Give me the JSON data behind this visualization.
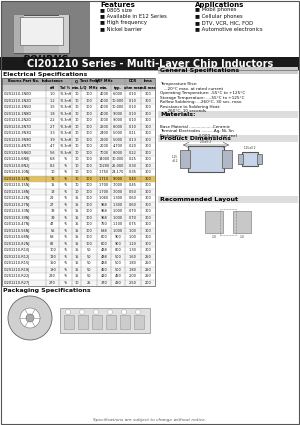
{
  "title": "CI201210 Series - Multi-Layer Chip Inductors",
  "logo": "BOURNS",
  "features_title": "Features",
  "features": [
    "0805 size",
    "Available in E12 Series",
    "High frequency",
    "Nickel barrier"
  ],
  "applications_title": "Applications",
  "applications": [
    "Mobil phones",
    "Cellular phones",
    "DTV, VCR, HIC, FOD",
    "Automotive electronics"
  ],
  "elec_spec_title": "Electrical Specifications",
  "gen_spec_title": "General Specifications",
  "col_headers_row1": [
    "Bourns Part No.",
    "Inductance",
    "Q",
    "Test Freq",
    "SRF MHz",
    "",
    "DCR",
    "Irms"
  ],
  "col_headers_row2": [
    "",
    "nH",
    "Tol %",
    "min.",
    "L/Q  MHz",
    "min.",
    "typ.",
    "ohm max",
    "mA max"
  ],
  "table_rows": [
    [
      "CI201210-1N0D",
      "1.0",
      "°0.3nH",
      "10",
      "100",
      "4000",
      "6,000",
      "0.10",
      "300"
    ],
    [
      "CI201210-1N2D",
      "1.2",
      "°0.3nH",
      "10",
      "100",
      "4000",
      "10,000",
      "0.10",
      "300"
    ],
    [
      "CI201210-1N5D",
      "1.5",
      "°0.3nH",
      "10",
      "100",
      "4000",
      "10,000",
      "0.10",
      "300"
    ],
    [
      "CI201210-1N8D",
      "1.8",
      "°0.3nH",
      "10",
      "100",
      "4000",
      "9,000",
      "0.10",
      "300"
    ],
    [
      "CI201210-2N2D",
      "2.2",
      "°0.3nH",
      "10",
      "100",
      "3000",
      "9,000",
      "0.10",
      "300"
    ],
    [
      "CI201210-2N7D",
      "2.7",
      "°0.3nH",
      "10",
      "100",
      "2600",
      "8,000",
      "0.10",
      "300"
    ],
    [
      "CI201210-3N3D",
      "3.3",
      "°0.3nH",
      "10",
      "100",
      "2400",
      "5,000",
      "0.11",
      "300"
    ],
    [
      "CI201210-3N9D",
      "3.9",
      "°0.3nH",
      "10",
      "100",
      "2200",
      "5,000",
      "0.13",
      "300"
    ],
    [
      "CI201210-4N7D",
      "4.7",
      "°0.3nH",
      "10",
      "100",
      "2000",
      "4,700",
      "0.20",
      "300"
    ],
    [
      "CI201210-5N6D",
      "5.6",
      "°0.3nH",
      "10",
      "100",
      "7000",
      "8,000",
      "0.22",
      "300"
    ],
    [
      "CI201210-6N8J",
      "6.8",
      "°5",
      "10",
      "100",
      "14000",
      "30,000",
      "0.25",
      "300"
    ],
    [
      "CI201210-8N2J",
      "8.2",
      "°5",
      "10",
      "100",
      "10200",
      "25,000",
      "0.30",
      "300"
    ],
    [
      "CI201210-10NJ",
      "10",
      "°5",
      "10",
      "100",
      "1,750",
      "24,170",
      "0.35",
      "300"
    ],
    [
      "CI201210-12NJ",
      "12",
      "°5",
      "10",
      "100",
      "1,710",
      "9,000",
      "0.40",
      "300"
    ],
    [
      "CI201210-15NJ",
      "15",
      "°5",
      "10",
      "100",
      "1,700",
      "7,000",
      "0.45",
      "300"
    ],
    [
      "CI201210-18NJ",
      "18",
      "°5",
      "10",
      "100",
      "1,700",
      "7,000",
      "0.50",
      "300"
    ],
    [
      "CI201210-22NJ",
      "22",
      "°5",
      "15",
      "100",
      "1,060",
      "1,300",
      "0.60",
      "300"
    ],
    [
      "CI201210-27NJ",
      "27",
      "°5",
      "15",
      "100",
      "968",
      "1,300",
      "0.60",
      "300"
    ],
    [
      "CI201210-33NJ",
      "33",
      "°5",
      "15",
      "100",
      "968",
      "1,000",
      "0.70",
      "300"
    ],
    [
      "CI201210-39NJ",
      "39",
      "°5",
      "15",
      "100",
      "968",
      "1,000",
      "0.70",
      "300"
    ],
    [
      "CI201210-47NJ",
      "47",
      "°5",
      "15",
      "100",
      "750",
      "1,100",
      "0.75",
      "300"
    ],
    [
      "CI201210-56NJ",
      "56",
      "°5",
      "15",
      "100",
      "688",
      "1,000",
      "1.00",
      "300"
    ],
    [
      "CI201210-68NJ",
      "68",
      "°5",
      "15",
      "100",
      "600",
      "900",
      "1.00",
      "300"
    ],
    [
      "CI201210-82NJ",
      "82",
      "°5",
      "15",
      "100",
      "600",
      "900",
      "1.20",
      "300"
    ],
    [
      "CI201210-R10J",
      "100",
      "°5",
      "15",
      "50",
      "488",
      "800",
      "1.30",
      "300"
    ],
    [
      "CI201210-R12J",
      "120",
      "°5",
      "15",
      "50",
      "488",
      "500",
      "1.60",
      "250"
    ],
    [
      "CI201210-R15J",
      "150",
      "°5",
      "15",
      "50",
      "488",
      "500",
      "1.80",
      "250"
    ],
    [
      "CI201210-R18J",
      "180",
      "°5",
      "15",
      "50",
      "450",
      "500",
      "1.80",
      "250"
    ],
    [
      "CI201210-R22J",
      "220",
      "°5",
      "15",
      "50",
      "420",
      "450",
      "2.00",
      "250"
    ],
    [
      "CI201210-R27J",
      "270",
      "°5",
      "10",
      "25",
      "370",
      "410",
      "2.50",
      "200"
    ]
  ],
  "highlight_row": 13,
  "gen_spec_text": [
    "Temperature Rise:",
    "   ...20°C max. at rated current",
    "Operating Temperature: -55°C to +125°C",
    "Storage Temperature: ...-55°C to +125°C",
    "Reflow Soldering: ...260°C, 30 sec. max.",
    "Resistance to Soldering Heat:",
    "   ...260°C, 10 seconds"
  ],
  "materials_title": "Materials:",
  "materials_text": [
    "Base Material ...................Ceramic",
    "Terminal Electrodes ..........Ag, Ni, Sn",
    "Packaging..............3,000 pcs. per reel"
  ],
  "prod_dim_title": "Product Dimensions",
  "rec_layout_title": "Recommended Layout",
  "pkg_spec_title": "Packaging Specifications",
  "footer": "Specifications are subject to change without notice.",
  "bg_color": "#ffffff",
  "title_bar_color": "#1a1a1a",
  "row_highlight_color": "#e0c060",
  "row_alt_color": "#f5f5f5",
  "row_color": "#ffffff",
  "header_row_color": "#cccccc"
}
